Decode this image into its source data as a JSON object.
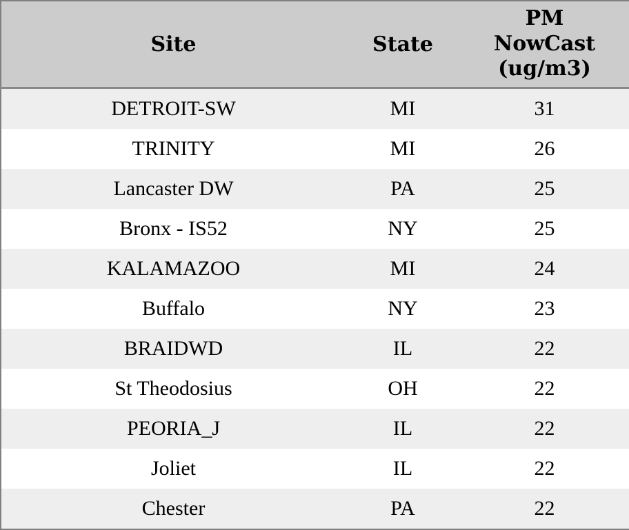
{
  "chart_data": {
    "type": "table",
    "columns": [
      "Site",
      "State",
      "PM NowCast (ug/m3)"
    ],
    "rows": [
      [
        "DETROIT-SW",
        "MI",
        31
      ],
      [
        "TRINITY",
        "MI",
        26
      ],
      [
        "Lancaster DW",
        "PA",
        25
      ],
      [
        "Bronx - IS52",
        "NY",
        25
      ],
      [
        "KALAMAZOO",
        "MI",
        24
      ],
      [
        "Buffalo",
        "NY",
        23
      ],
      [
        "BRAIDWD",
        "IL",
        22
      ],
      [
        "St Theodosius",
        "OH",
        22
      ],
      [
        "PEORIA_J",
        "IL",
        22
      ],
      [
        "Joliet",
        "IL",
        22
      ],
      [
        "Chester",
        "PA",
        22
      ]
    ]
  },
  "header": {
    "site": "Site",
    "state": "State",
    "pm_nowcast": "PM\nNowCast\n(ug/m3)"
  },
  "colors": {
    "header_bg": "#cccccc",
    "row_stripe_bg": "#eeeeee",
    "row_bg": "#ffffff",
    "outer_border": "#808080",
    "header_underline": "#888888",
    "text": "#000000"
  }
}
